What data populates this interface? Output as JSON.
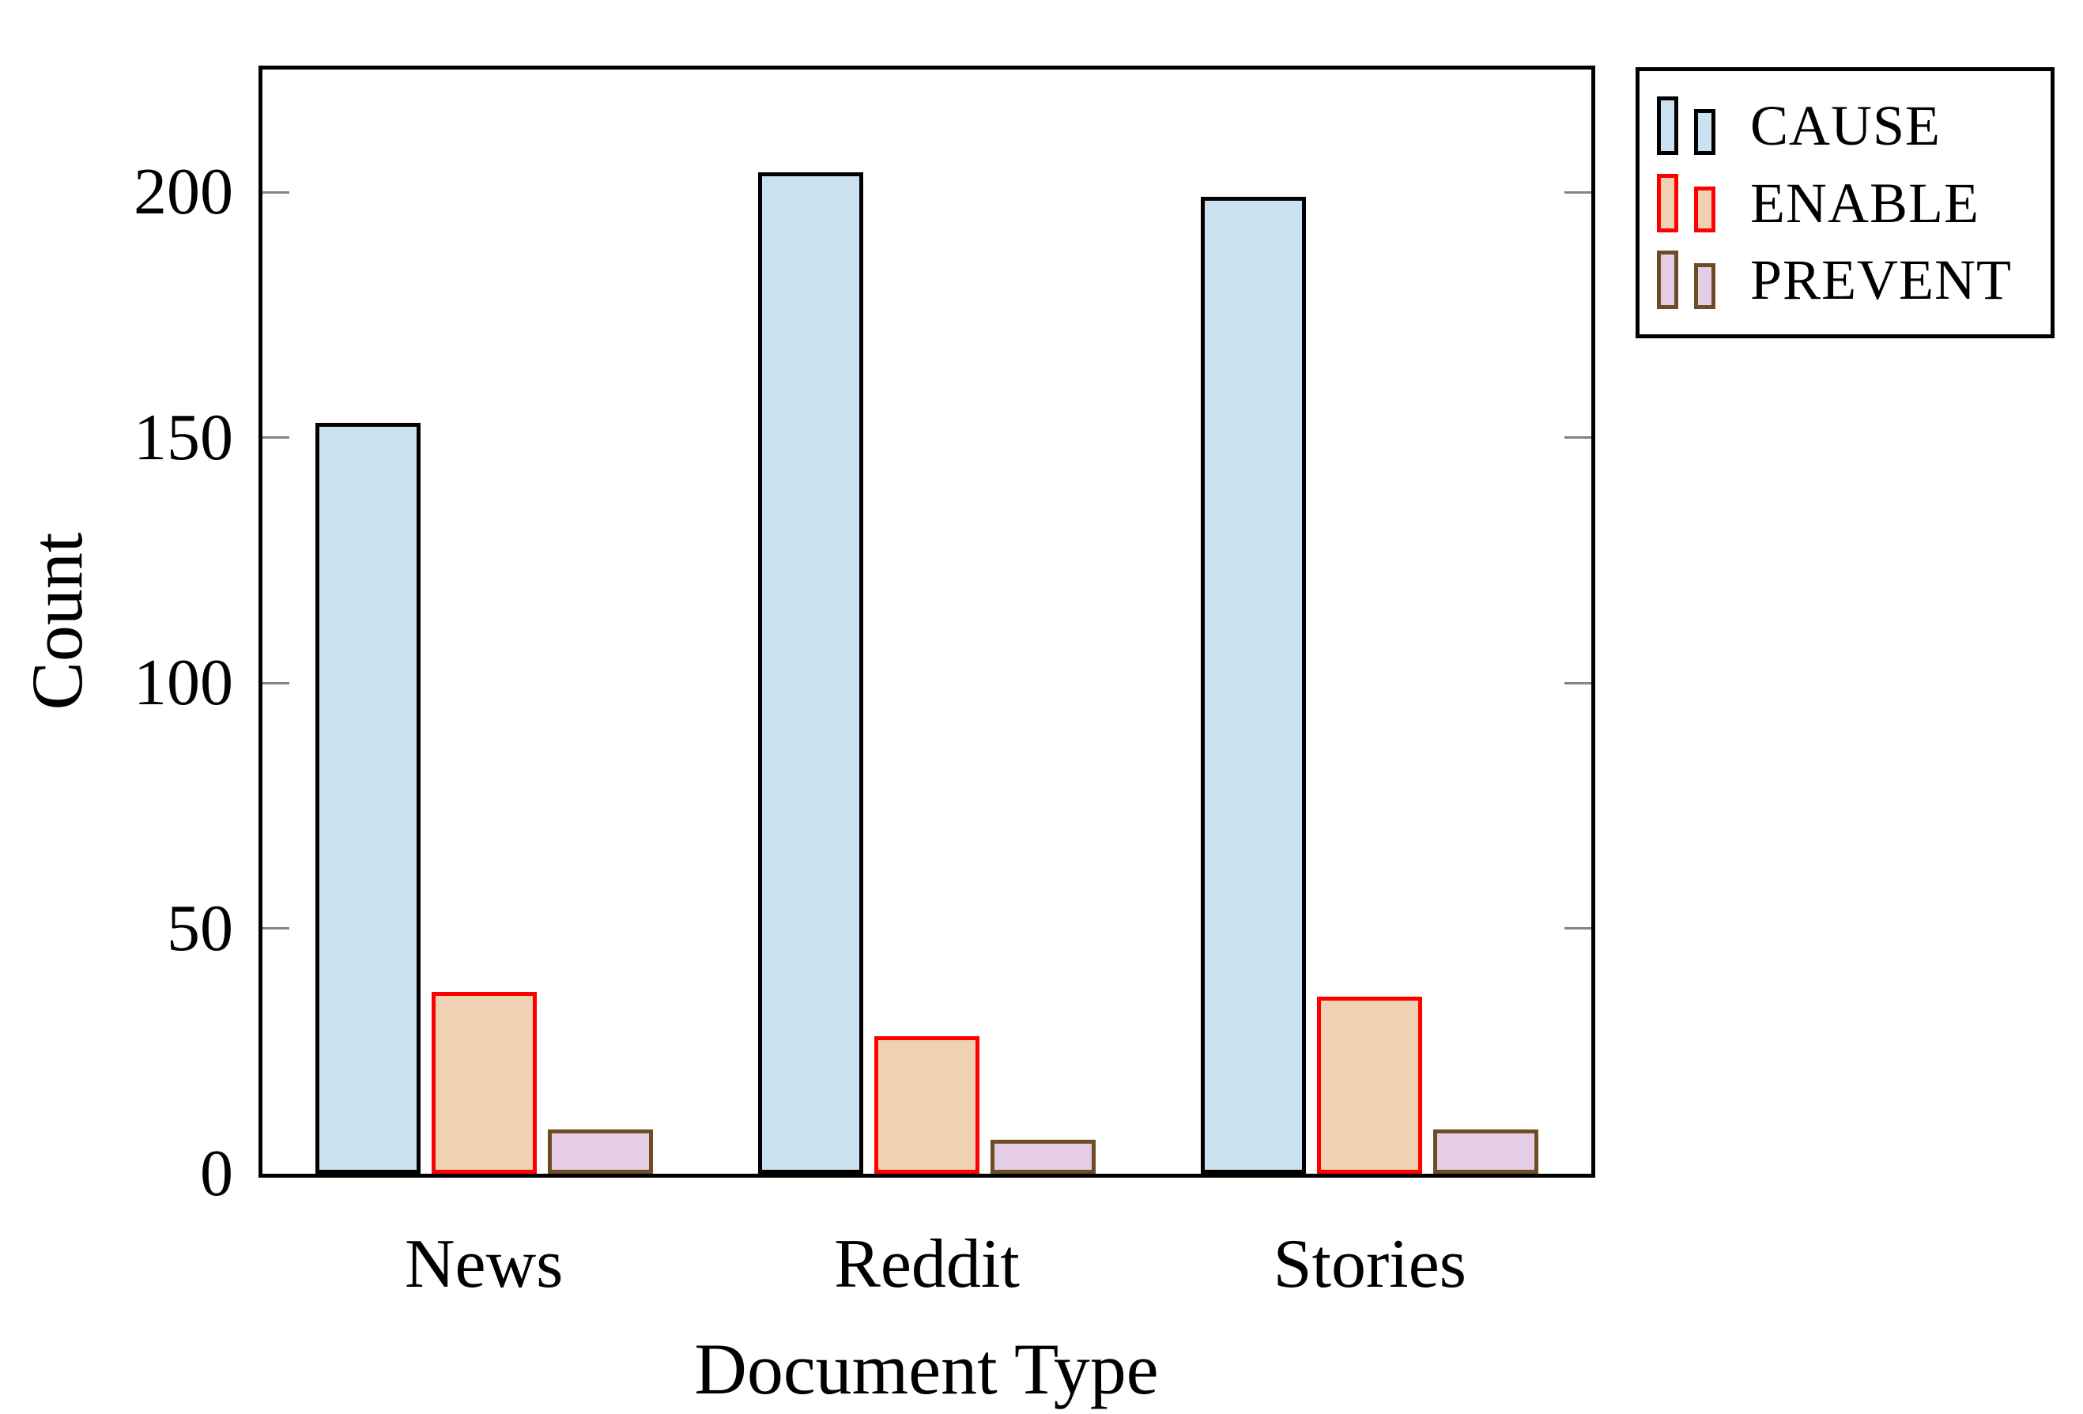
{
  "figure": {
    "background": "#ffffff"
  },
  "chart_data": {
    "type": "bar",
    "title": "",
    "xlabel": "Document Type",
    "ylabel": "Count",
    "categories": [
      "News",
      "Reddit",
      "Stories"
    ],
    "series": [
      {
        "name": "CAUSE",
        "values": [
          153,
          204,
          199
        ],
        "fill": "#cbe1ef",
        "edge": "#000000"
      },
      {
        "name": "ENABLE",
        "values": [
          37,
          28,
          36
        ],
        "fill": "#f1d1b4",
        "edge": "#ff0000"
      },
      {
        "name": "PREVENT",
        "values": [
          9,
          7,
          9
        ],
        "fill": "#e5cde7",
        "edge": "#6f4c24"
      }
    ],
    "ylim": [
      0,
      225
    ],
    "yticks": [
      0,
      50,
      100,
      150,
      200
    ],
    "grid": false,
    "legend_position": "top-right-outside",
    "axis_color": "#000000",
    "tick_color": "#848484"
  }
}
